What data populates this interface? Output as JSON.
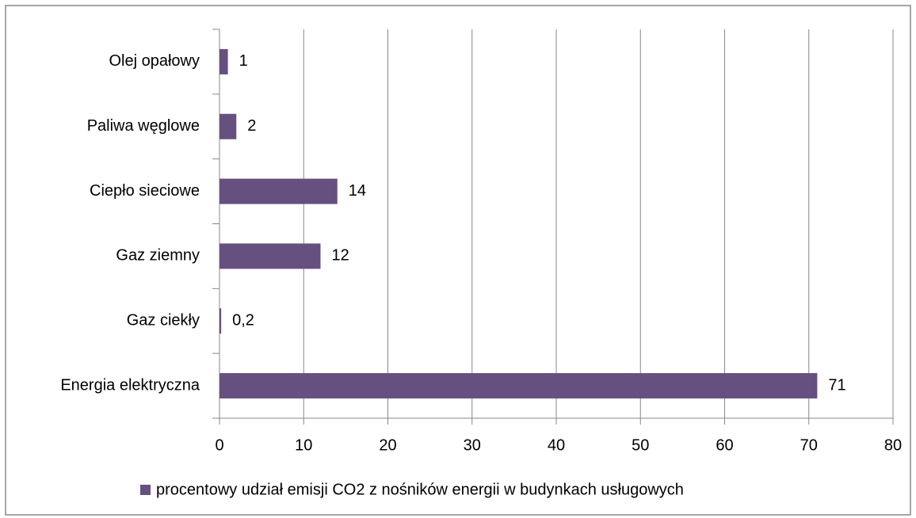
{
  "chart_data": {
    "type": "hbar",
    "categories": [
      "Olej opałowy",
      "Paliwa węglowe",
      "Ciepło sieciowe",
      "Gaz ziemny",
      "Gaz ciekły",
      "Energia elektryczna"
    ],
    "series": [
      {
        "name": "procentowy udział emisji CO2 z nośników energii w budynkach usługowych",
        "color": "#65507f",
        "values": [
          1,
          2,
          14,
          12,
          0.2,
          71
        ],
        "value_labels": [
          "1",
          "2",
          "14",
          "12",
          "0,2",
          "71"
        ]
      }
    ],
    "xlim": [
      0,
      80
    ],
    "xticks": [
      0,
      10,
      20,
      30,
      40,
      50,
      60,
      70,
      80
    ],
    "grid": true,
    "legend": "bottom"
  }
}
